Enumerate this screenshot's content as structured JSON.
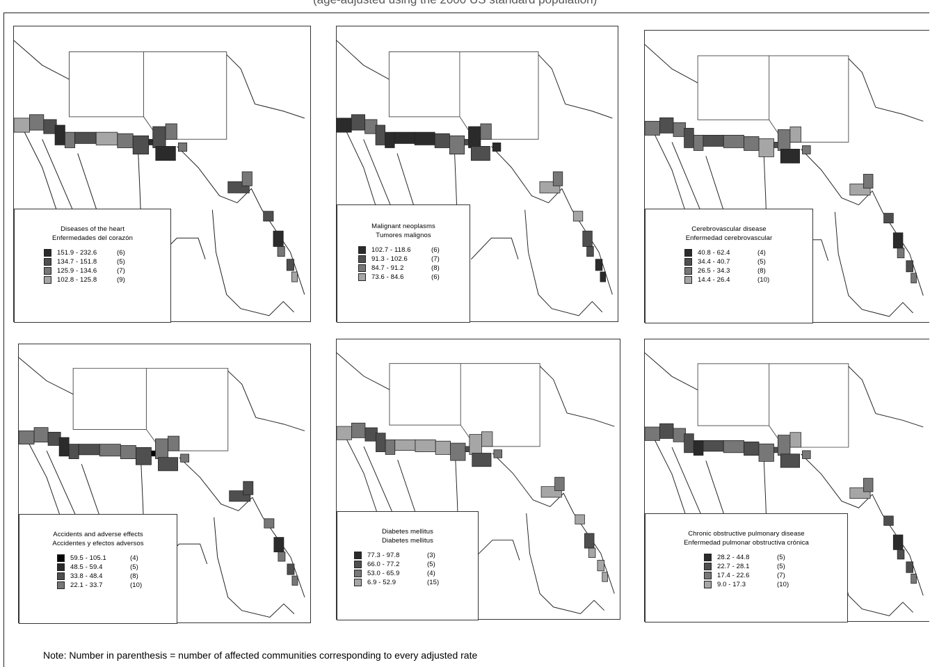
{
  "header_fragment": "(age-adjusted using the 2000 US standard population)",
  "colors": {
    "c4": "#2b2b2b",
    "c3": "#4f4f4f",
    "c2": "#777777",
    "c1": "#a6a6a6",
    "top": "#050505"
  },
  "maps": [
    {
      "id": "heart",
      "title_en": "Diseases of the heart",
      "title_es": "Enfermedades del corazón",
      "classes": [
        {
          "range": "151.9 - 232.6",
          "count": "(6)",
          "color": "#2b2b2b"
        },
        {
          "range": "134.7 - 151.8",
          "count": "(5)",
          "color": "#4f4f4f"
        },
        {
          "range": "125.9 - 134.6",
          "count": "(7)",
          "color": "#777777"
        },
        {
          "range": "102.8 - 125.8",
          "count": "(9)",
          "color": "#a6a6a6"
        }
      ]
    },
    {
      "id": "neoplasms",
      "title_en": "Malignant neoplasms",
      "title_es": "Tumores malignos",
      "classes": [
        {
          "range": "102.7 - 118.6",
          "count": "(6)",
          "color": "#2b2b2b"
        },
        {
          "range": "91.3 - 102.6",
          "count": "(7)",
          "color": "#4f4f4f"
        },
        {
          "range": "84.7 - 91.2",
          "count": "(8)",
          "color": "#777777"
        },
        {
          "range": "73.6 - 84.6",
          "count": "(6)",
          "color": "#a6a6a6"
        }
      ]
    },
    {
      "id": "cerebrovascular",
      "title_en": "Cerebrovascular disease",
      "title_es": "Enfermedad cerebrovascular",
      "classes": [
        {
          "range": "40.8 - 62.4",
          "count": "(4)",
          "color": "#2b2b2b"
        },
        {
          "range": "34.4 - 40.7",
          "count": "(5)",
          "color": "#4f4f4f"
        },
        {
          "range": "26.5 - 34.3",
          "count": "(8)",
          "color": "#777777"
        },
        {
          "range": "14.4 - 26.4",
          "count": "(10)",
          "color": "#a6a6a6"
        }
      ]
    },
    {
      "id": "accidents",
      "title_en": "Accidents and adverse effects",
      "title_es": "Accidentes y efectos adversos",
      "classes": [
        {
          "range": "59.5 - 105.1",
          "count": "(4)",
          "color": "#050505"
        },
        {
          "range": "48.5 - 59.4",
          "count": "(5)",
          "color": "#2b2b2b"
        },
        {
          "range": "33.8 - 48.4",
          "count": "(8)",
          "color": "#4f4f4f"
        },
        {
          "range": "22.1 - 33.7",
          "count": "(10)",
          "color": "#777777"
        }
      ]
    },
    {
      "id": "diabetes",
      "title_en": "Diabetes mellitus",
      "title_es": "Diabetes mellitus",
      "classes": [
        {
          "range": "77.3 - 97.8",
          "count": "(3)",
          "color": "#2b2b2b"
        },
        {
          "range": "66.0 - 77.2",
          "count": "(5)",
          "color": "#4f4f4f"
        },
        {
          "range": "53.0 - 65.9",
          "count": "(4)",
          "color": "#777777"
        },
        {
          "range": "6.9 - 52.9",
          "count": "(15)",
          "color": "#a6a6a6"
        }
      ]
    },
    {
      "id": "copd",
      "title_en": "Chronic obstructive pulmonary disease",
      "title_es": "Enfermedad pulmonar obstructiva crónica",
      "classes": [
        {
          "range": "28.2 - 44.8",
          "count": "(5)",
          "color": "#2b2b2b"
        },
        {
          "range": "22.7 - 28.1",
          "count": "(5)",
          "color": "#4f4f4f"
        },
        {
          "range": "17.4 - 22.6",
          "count": "(7)",
          "color": "#777777"
        },
        {
          "range": "9.0 - 17.3",
          "count": "(10)",
          "color": "#a6a6a6"
        }
      ]
    }
  ],
  "note": "Note: Number in parenthesis = number of affected communities corresponding to every adjusted rate"
}
